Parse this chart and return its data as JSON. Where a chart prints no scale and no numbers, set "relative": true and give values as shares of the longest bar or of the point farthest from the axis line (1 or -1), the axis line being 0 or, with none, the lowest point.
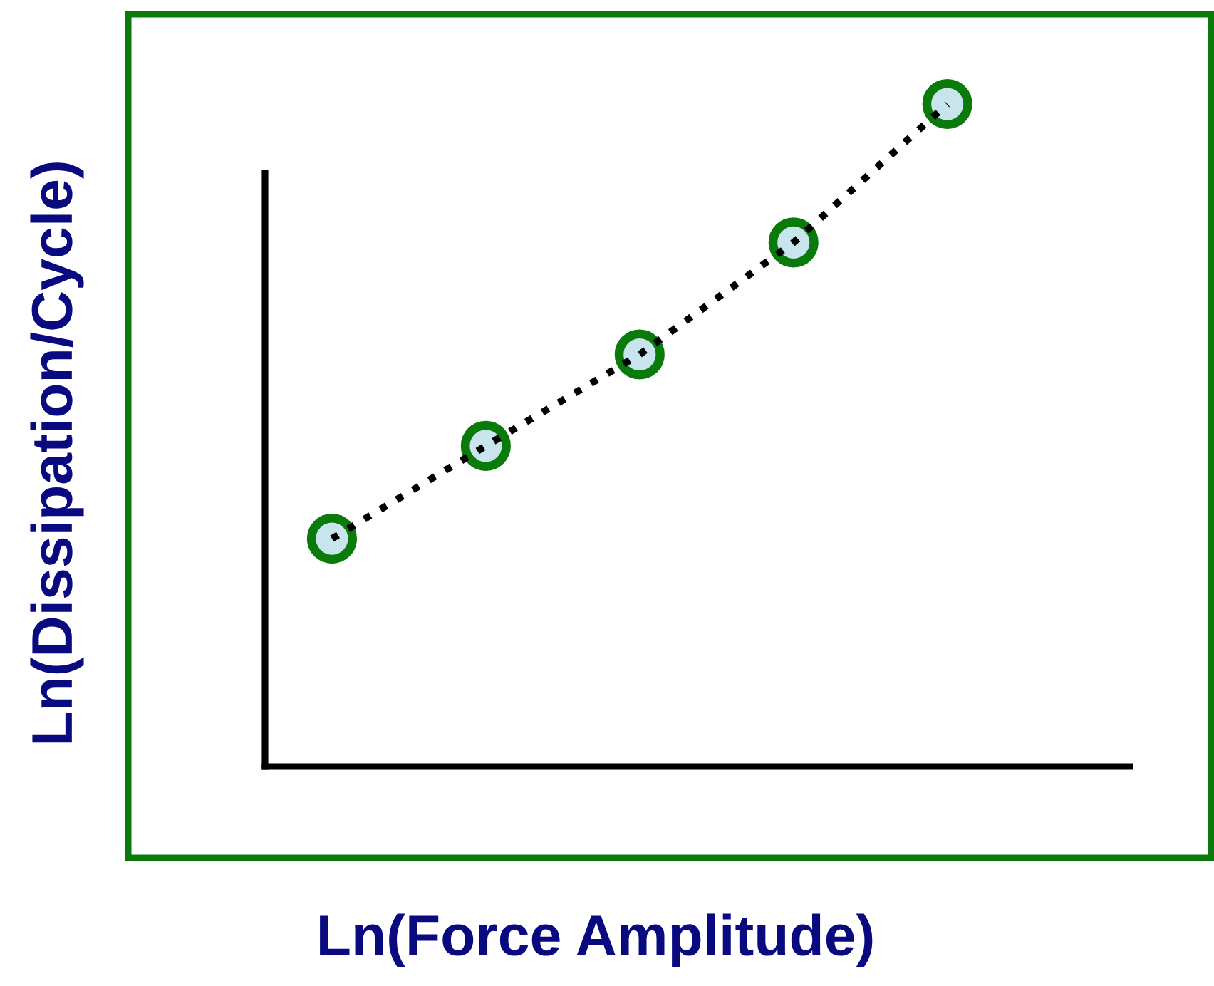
{
  "chart_data": {
    "type": "line",
    "relative": true,
    "xlabel": "Ln(Force Amplitude)",
    "ylabel": "Ln(Dissipation/Cycle)",
    "categories": [
      null,
      null,
      null,
      null,
      null
    ],
    "marker": "circle",
    "line_style": "dotted",
    "series": [
      {
        "color": "#000000",
        "values": [
          0.344,
          0.484,
          0.622,
          0.791,
          1.0
        ]
      }
    ]
  }
}
